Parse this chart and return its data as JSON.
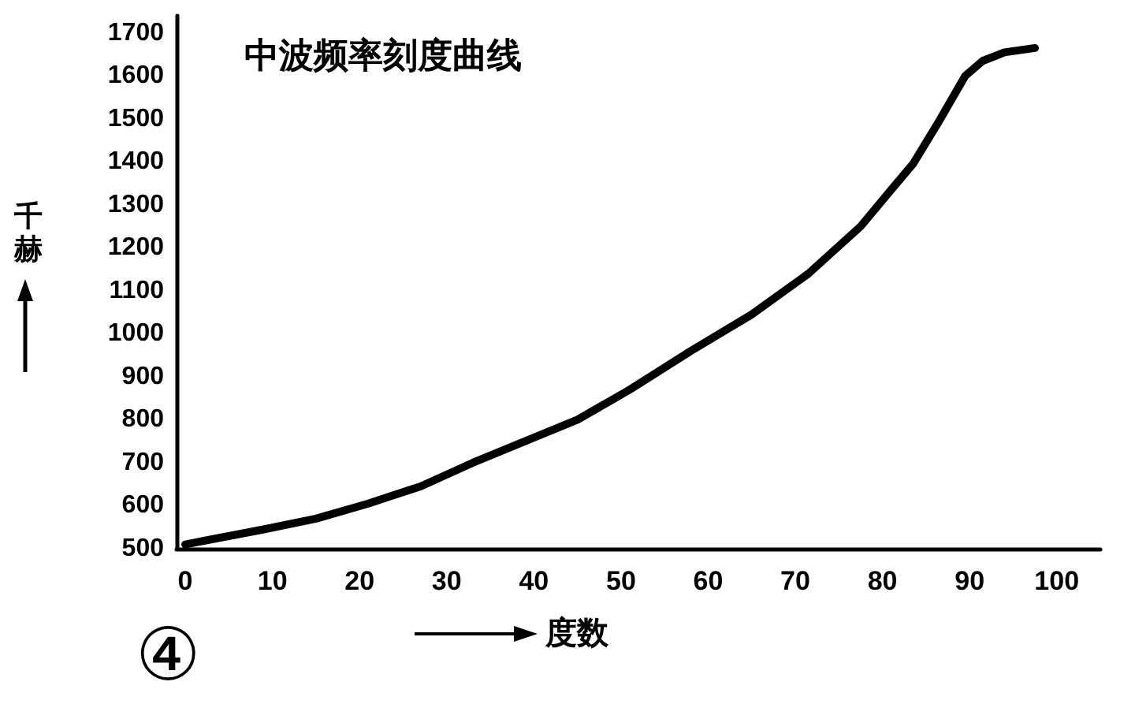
{
  "chart_data": {
    "type": "line",
    "title": "中波频率刻度曲线",
    "xlabel": "度数",
    "ylabel": "千赫",
    "annotations": [
      "④"
    ],
    "x": [
      0,
      9,
      15,
      21,
      24,
      27,
      33,
      39,
      45,
      51,
      58,
      65,
      71.5,
      77.5,
      81,
      83.5,
      86.5,
      89.5,
      91.5,
      94,
      97.5
    ],
    "series": [
      {
        "color": "#000000",
        "values": [
          510,
          545,
          570,
          605,
          625,
          645,
          700,
          750,
          800,
          870,
          960,
          1045,
          1140,
          1250,
          1335,
          1395,
          1495,
          1600,
          1635,
          1655,
          1665
        ]
      }
    ],
    "xlim": [
      -1,
      105
    ],
    "xticks": [
      0,
      10,
      20,
      30,
      40,
      50,
      60,
      70,
      80,
      90,
      100
    ],
    "ylim": [
      500,
      1740
    ],
    "yticks": [
      500,
      600,
      700,
      800,
      900,
      1000,
      1100,
      1200,
      1300,
      1400,
      1500,
      1600,
      1700
    ],
    "marker": "none",
    "line_style": "solid"
  }
}
